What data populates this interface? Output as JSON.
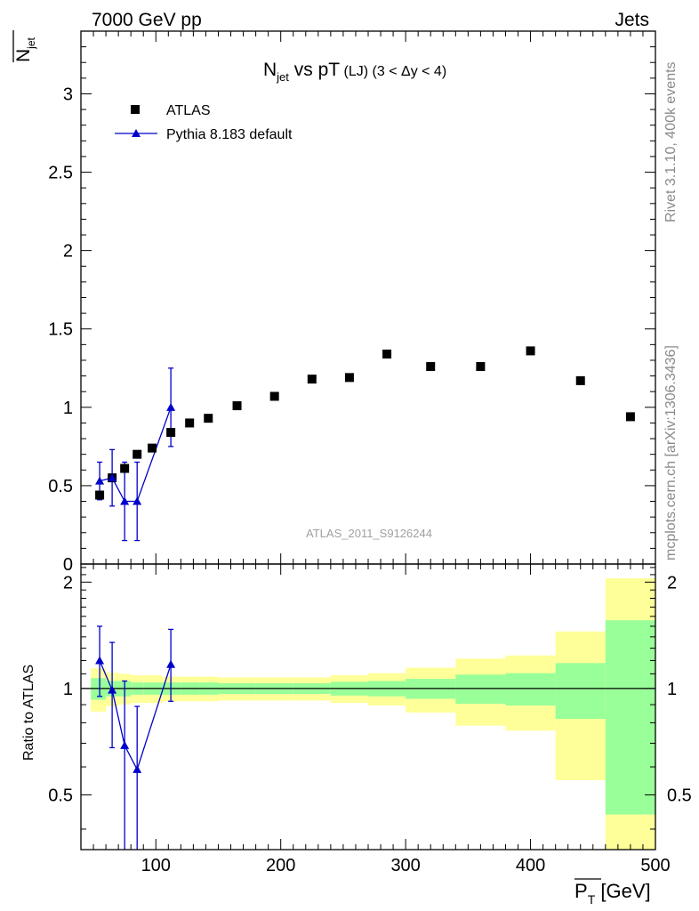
{
  "header": {
    "left": "7000 GeV pp",
    "right": "Jets"
  },
  "side_labels": {
    "rivet": "Rivet 3.1.10,  400k events",
    "mcplots": "mcplots.cern.ch [arXiv:1306.3436]"
  },
  "colors": {
    "data": "#000000",
    "mc": "#0000cc",
    "band_inner": "#99ff99",
    "band_outer": "#ffff99"
  },
  "chart_data": [
    {
      "type": "scatter",
      "title_main": "N",
      "title_sub": "jet",
      "title_rest": " vs pT",
      "title_small": " (LJ) (3 < Δy < 4)",
      "ylabel_main": "N",
      "ylabel_sub": "jet",
      "watermark": "ATLAS_2011_S9126244",
      "xlim": [
        40,
        500
      ],
      "ylim": [
        0,
        3.4
      ],
      "yticks": [
        0,
        0.5,
        1,
        1.5,
        2,
        2.5,
        3
      ],
      "ytick_labels": [
        "0",
        "0.5",
        "1",
        "1.5",
        "2",
        "2.5",
        "3"
      ],
      "legend_position": "top-left",
      "series": [
        {
          "name": "ATLAS",
          "style": "square-markers",
          "x": [
            55,
            65,
            75,
            85,
            97,
            112,
            127,
            142,
            165,
            195,
            225,
            255,
            285,
            320,
            360,
            400,
            440,
            480
          ],
          "y": [
            0.44,
            0.55,
            0.61,
            0.7,
            0.74,
            0.84,
            0.9,
            0.93,
            1.01,
            1.07,
            1.18,
            1.19,
            1.34,
            1.26,
            1.26,
            1.36,
            1.17,
            0.94
          ]
        },
        {
          "name": "Pythia 8.183 default",
          "style": "line-triangles",
          "x": [
            55,
            65,
            75,
            85,
            112
          ],
          "y": [
            0.53,
            0.55,
            0.4,
            0.4,
            1.0
          ],
          "err": [
            0.12,
            0.18,
            0.25,
            0.25,
            0.25
          ]
        }
      ]
    },
    {
      "type": "scatter",
      "ylabel": "Ratio to ATLAS",
      "xlabel_main": "P",
      "xlabel_sub": "T",
      "xlabel_unit": " [GeV]",
      "xlim": [
        40,
        500
      ],
      "ylim": [
        0.35,
        2.25
      ],
      "xticks": [
        100,
        200,
        300,
        400,
        500
      ],
      "xtick_labels": [
        "100",
        "200",
        "300",
        "400",
        "500"
      ],
      "yticks": [
        0.5,
        1,
        2
      ],
      "ytick_labels": [
        "0.5",
        "1",
        "2"
      ],
      "bins": [
        {
          "lo": 48,
          "hi": 60,
          "inner": [
            0.93,
            1.07
          ],
          "outer": [
            0.86,
            1.14
          ]
        },
        {
          "lo": 60,
          "hi": 70,
          "inner": [
            0.95,
            1.05
          ],
          "outer": [
            0.89,
            1.11
          ]
        },
        {
          "lo": 70,
          "hi": 80,
          "inner": [
            0.95,
            1.05
          ],
          "outer": [
            0.9,
            1.1
          ]
        },
        {
          "lo": 80,
          "hi": 90,
          "inner": [
            0.96,
            1.04
          ],
          "outer": [
            0.91,
            1.09
          ]
        },
        {
          "lo": 90,
          "hi": 105,
          "inner": [
            0.96,
            1.04
          ],
          "outer": [
            0.91,
            1.09
          ]
        },
        {
          "lo": 105,
          "hi": 120,
          "inner": [
            0.96,
            1.04
          ],
          "outer": [
            0.92,
            1.08
          ]
        },
        {
          "lo": 120,
          "hi": 135,
          "inner": [
            0.96,
            1.04
          ],
          "outer": [
            0.92,
            1.08
          ]
        },
        {
          "lo": 135,
          "hi": 150,
          "inner": [
            0.96,
            1.04
          ],
          "outer": [
            0.92,
            1.08
          ]
        },
        {
          "lo": 150,
          "hi": 180,
          "inner": [
            0.965,
            1.035
          ],
          "outer": [
            0.925,
            1.075
          ]
        },
        {
          "lo": 180,
          "hi": 210,
          "inner": [
            0.965,
            1.035
          ],
          "outer": [
            0.925,
            1.075
          ]
        },
        {
          "lo": 210,
          "hi": 240,
          "inner": [
            0.965,
            1.035
          ],
          "outer": [
            0.925,
            1.075
          ]
        },
        {
          "lo": 240,
          "hi": 270,
          "inner": [
            0.955,
            1.045
          ],
          "outer": [
            0.91,
            1.09
          ]
        },
        {
          "lo": 270,
          "hi": 300,
          "inner": [
            0.95,
            1.05
          ],
          "outer": [
            0.895,
            1.105
          ]
        },
        {
          "lo": 300,
          "hi": 340,
          "inner": [
            0.935,
            1.065
          ],
          "outer": [
            0.855,
            1.145
          ]
        },
        {
          "lo": 340,
          "hi": 380,
          "inner": [
            0.905,
            1.095
          ],
          "outer": [
            0.785,
            1.215
          ]
        },
        {
          "lo": 380,
          "hi": 420,
          "inner": [
            0.895,
            1.105
          ],
          "outer": [
            0.76,
            1.24
          ]
        },
        {
          "lo": 420,
          "hi": 460,
          "inner": [
            0.82,
            1.18
          ],
          "outer": [
            0.55,
            1.45
          ]
        },
        {
          "lo": 460,
          "hi": 500,
          "inner": [
            0.44,
            1.56
          ],
          "outer": [
            0.35,
            2.05
          ]
        }
      ],
      "series": [
        {
          "name": "Pythia 8.183 default",
          "x": [
            55,
            65,
            75,
            85,
            112
          ],
          "y": [
            1.2,
            0.99,
            0.69,
            0.59,
            1.17
          ],
          "err_lo": [
            0.25,
            0.31,
            0.34,
            0.25,
            0.25
          ],
          "err_hi": [
            0.3,
            0.36,
            0.36,
            0.3,
            0.3
          ]
        }
      ]
    }
  ]
}
